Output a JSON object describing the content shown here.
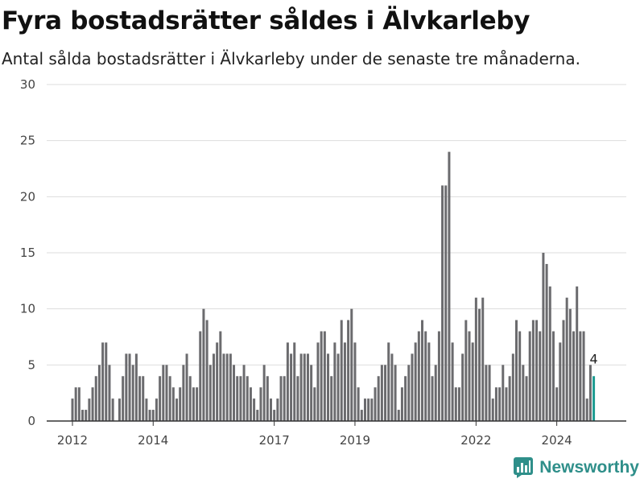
{
  "title": "Fyra bostadsrätter såldes i Älvkarleby",
  "subtitle": "Antal sålda bostadsrätter i Älvkarleby under de senaste tre månaderna.",
  "brand": {
    "name": "Newsworthy"
  },
  "colors": {
    "bar": "#6b6b6e",
    "highlight": "#1a9a90",
    "grid": "#dddddd",
    "axis": "#333333"
  },
  "chart_data": {
    "type": "bar",
    "title": "",
    "xlabel": "",
    "ylabel": "",
    "ylim": [
      0,
      30
    ],
    "yticks": [
      0,
      5,
      10,
      15,
      20,
      25,
      30
    ],
    "start": "2012-01",
    "xticks": [
      "2012",
      "2014",
      "2017",
      "2019",
      "2022",
      "2024"
    ],
    "xtick_months": [
      "2012-01",
      "2014-01",
      "2017-01",
      "2019-01",
      "2022-01",
      "2024-01"
    ],
    "values": [
      2,
      3,
      3,
      1,
      1,
      2,
      3,
      4,
      5,
      7,
      7,
      5,
      2,
      0,
      2,
      4,
      6,
      6,
      5,
      6,
      4,
      4,
      2,
      1,
      1,
      2,
      4,
      5,
      5,
      4,
      3,
      2,
      3,
      5,
      6,
      4,
      3,
      3,
      8,
      10,
      9,
      5,
      6,
      7,
      8,
      6,
      6,
      6,
      5,
      4,
      4,
      5,
      4,
      3,
      2,
      1,
      3,
      5,
      4,
      2,
      1,
      2,
      4,
      4,
      7,
      6,
      7,
      4,
      6,
      6,
      6,
      5,
      3,
      7,
      8,
      8,
      6,
      4,
      7,
      6,
      9,
      7,
      9,
      10,
      7,
      3,
      1,
      2,
      2,
      2,
      3,
      4,
      5,
      5,
      7,
      6,
      5,
      1,
      3,
      4,
      5,
      6,
      7,
      8,
      9,
      8,
      7,
      4,
      5,
      8,
      21,
      21,
      24,
      7,
      3,
      3,
      6,
      9,
      8,
      7,
      11,
      10,
      11,
      5,
      5,
      2,
      3,
      3,
      5,
      3,
      4,
      6,
      9,
      8,
      5,
      4,
      8,
      9,
      9,
      8,
      15,
      14,
      12,
      8,
      3,
      7,
      9,
      11,
      10,
      8,
      12,
      8,
      8,
      2,
      5,
      4
    ],
    "highlight_index": 155,
    "highlight_label": "4"
  }
}
